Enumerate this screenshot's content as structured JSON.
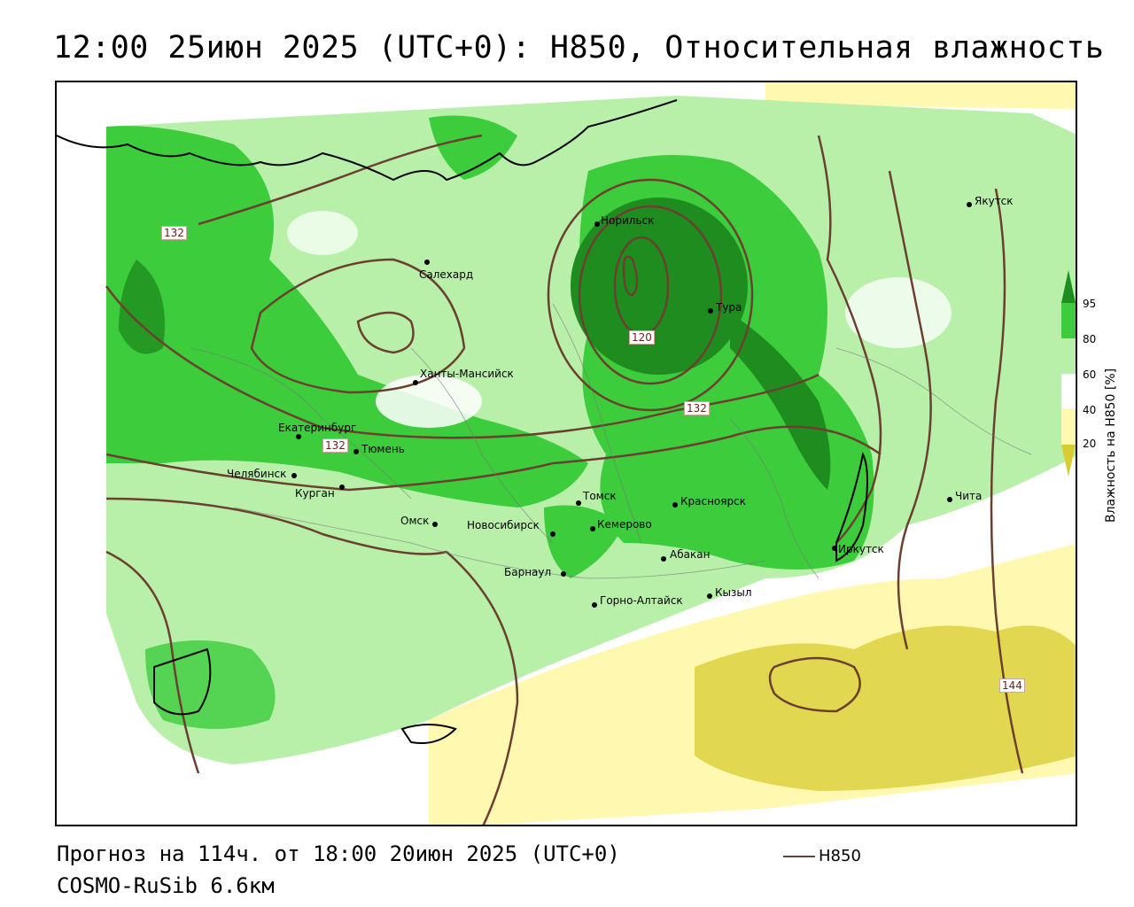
{
  "title": "12:00 25июн 2025 (UTC+0): H850, Относительная влажность",
  "footer": {
    "forecast": "Прогноз на 114ч. от 18:00 20июн 2025 (UTC+0)",
    "model": "COSMO-RuSib 6.6км"
  },
  "legend": {
    "line_label": "H850",
    "line_color": "#6b4030"
  },
  "colorbar": {
    "title": "Влажность на H850 [%]",
    "ticks": [
      "95",
      "80",
      "60",
      "40",
      "20"
    ],
    "colors": {
      "very_humid": "#1e8c1e",
      "humid": "#3ccc3c",
      "moist": "#aef0a0",
      "neutral": "#ffffff",
      "dry": "#fff8b0",
      "very_dry": "#d8cc30"
    }
  },
  "isolines": {
    "labels": [
      "132",
      "120",
      "132",
      "132",
      "144"
    ]
  },
  "cities": [
    {
      "name": "Якутск"
    },
    {
      "name": "Норильск"
    },
    {
      "name": "Салехард"
    },
    {
      "name": "Тура"
    },
    {
      "name": "Ханты-Мансийск"
    },
    {
      "name": "Екатеринбург"
    },
    {
      "name": "Тюмень"
    },
    {
      "name": "Челябинск"
    },
    {
      "name": "Курган"
    },
    {
      "name": "Омск"
    },
    {
      "name": "Новосибирск"
    },
    {
      "name": "Томск"
    },
    {
      "name": "Кемерово"
    },
    {
      "name": "Красноярск"
    },
    {
      "name": "Абакан"
    },
    {
      "name": "Барнаул"
    },
    {
      "name": "Горно-Алтайск"
    },
    {
      "name": "Кызыл"
    },
    {
      "name": "Иркутск"
    },
    {
      "name": "Чита"
    }
  ]
}
